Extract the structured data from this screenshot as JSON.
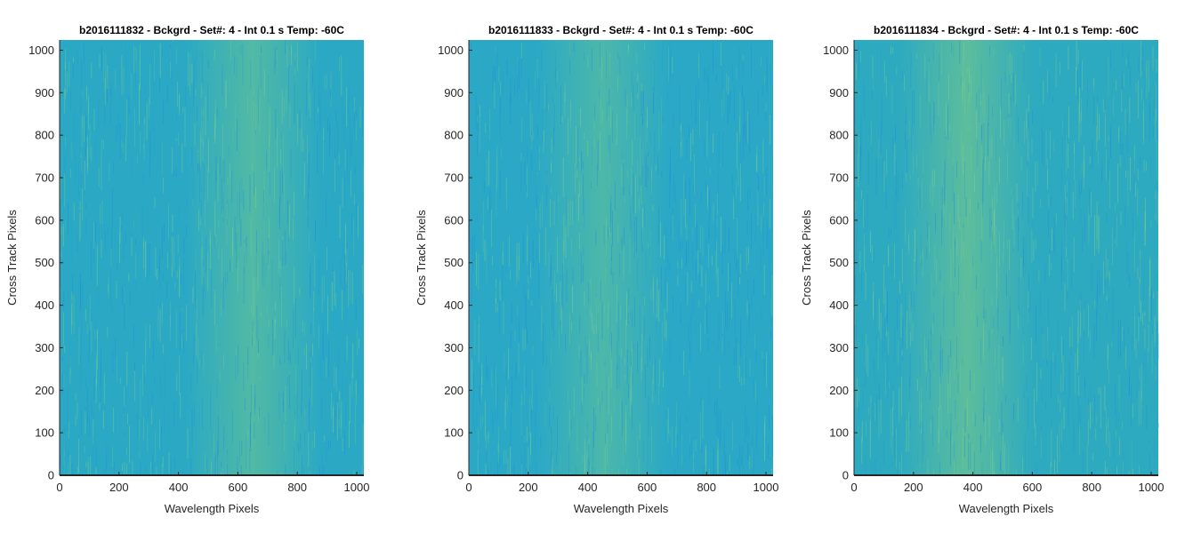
{
  "chart_data": [
    {
      "type": "heatmap",
      "title": "b2016111832 - Bckgrd - Set#: 4 - Int 0.1 s Temp: -60C",
      "xlabel": "Wavelength Pixels",
      "ylabel": "Cross Track Pixels",
      "xlim": [
        0,
        1024
      ],
      "ylim": [
        0,
        1024
      ],
      "xticks": [
        "0",
        "200",
        "400",
        "600",
        "800",
        "1000"
      ],
      "yticks": [
        "0",
        "100",
        "200",
        "300",
        "400",
        "500",
        "600",
        "700",
        "800",
        "900",
        "1000"
      ],
      "colormap": "parula",
      "base_color": "#2ba9c4",
      "band_color": "#5fbf9a",
      "brighter_band_center": 650,
      "grid": false
    },
    {
      "type": "heatmap",
      "title": "b2016111833 - Bckgrd - Set#: 4 - Int 0.1 s Temp: -60C",
      "xlabel": "Wavelength Pixels",
      "ylabel": "Cross Track Pixels",
      "xlim": [
        0,
        1024
      ],
      "ylim": [
        0,
        1024
      ],
      "xticks": [
        "0",
        "200",
        "400",
        "600",
        "800",
        "1000"
      ],
      "yticks": [
        "0",
        "100",
        "200",
        "300",
        "400",
        "500",
        "600",
        "700",
        "800",
        "900",
        "1000"
      ],
      "colormap": "parula",
      "base_color": "#2aa8c6",
      "band_color": "#58bda0",
      "brighter_band_center": 450,
      "grid": false
    },
    {
      "type": "heatmap",
      "title": "b2016111834 - Bckgrd - Set#: 4 - Int 0.1 s Temp: -60C",
      "xlabel": "Wavelength Pixels",
      "ylabel": "Cross Track Pixels",
      "xlim": [
        0,
        1024
      ],
      "ylim": [
        0,
        1024
      ],
      "xticks": [
        "0",
        "200",
        "400",
        "600",
        "800",
        "1000"
      ],
      "yticks": [
        "0",
        "100",
        "200",
        "300",
        "400",
        "500",
        "600",
        "700",
        "800",
        "900",
        "1000"
      ],
      "colormap": "parula",
      "base_color": "#2eaac0",
      "band_color": "#6cc391",
      "brighter_band_center": 380,
      "grid": false
    }
  ]
}
